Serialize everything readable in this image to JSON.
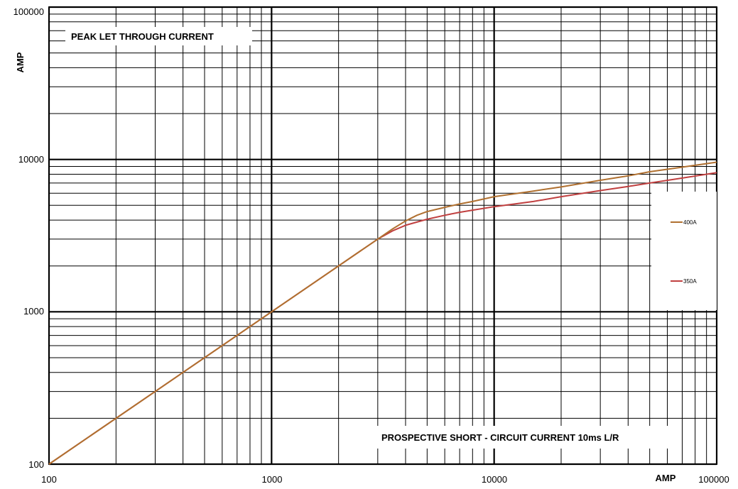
{
  "chart_data": {
    "type": "line",
    "title": "PEAK LET THROUGH CURRENT",
    "subtitle": "PROSPECTIVE SHORT - CIRCUIT CURRENT 10ms L/R",
    "xlabel": "AMP",
    "ylabel": "AMP",
    "xscale": "log",
    "yscale": "log",
    "xlim": [
      100,
      100000
    ],
    "ylim": [
      100,
      100000
    ],
    "grid": true,
    "legend_position": "right",
    "x_ticks": [
      "100",
      "1000",
      "10000",
      "100000"
    ],
    "y_ticks": [
      "100",
      "1000",
      "10000",
      "100000"
    ],
    "series": [
      {
        "name": "400A",
        "color": "#b07030",
        "x": [
          100,
          1000,
          3000,
          3500,
          4000,
          4500,
          5000,
          6000,
          7000,
          8000,
          10000,
          15000,
          20000,
          30000,
          40000,
          50000,
          70000,
          100000
        ],
        "y": [
          100,
          1000,
          3000,
          3500,
          3950,
          4300,
          4550,
          4850,
          5100,
          5300,
          5700,
          6200,
          6600,
          7300,
          7800,
          8300,
          8900,
          9600
        ]
      },
      {
        "name": "350A",
        "color": "#c04040",
        "x": [
          100,
          1000,
          3000,
          3500,
          4000,
          5000,
          6000,
          7000,
          8000,
          10000,
          15000,
          20000,
          30000,
          40000,
          50000,
          70000,
          100000
        ],
        "y": [
          100,
          1000,
          3000,
          3400,
          3700,
          4050,
          4300,
          4500,
          4650,
          4900,
          5300,
          5700,
          6250,
          6650,
          7000,
          7550,
          8200
        ]
      }
    ]
  }
}
